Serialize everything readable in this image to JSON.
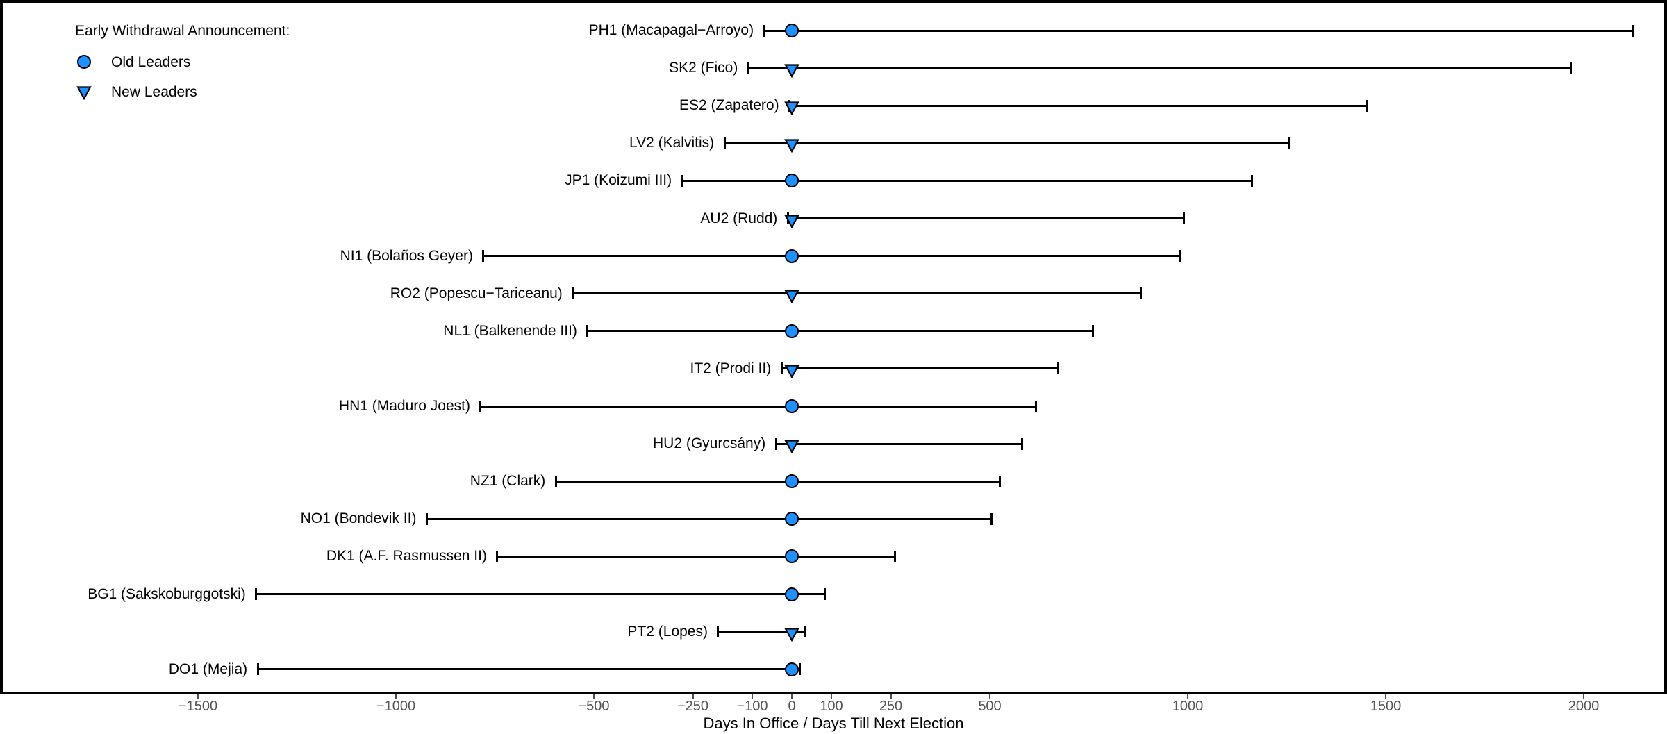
{
  "chart_data": {
    "type": "scatter",
    "subtype": "range-dot-plot",
    "title": "",
    "xlabel": "Days In Office / Days Till Next Election",
    "ylabel": "",
    "grid": false,
    "xlim": [
      -1990,
      2200
    ],
    "x_ticks": [
      {
        "value": -1500,
        "label": "−1500"
      },
      {
        "value": -1000,
        "label": "−1000"
      },
      {
        "value": -500,
        "label": "−500"
      },
      {
        "value": -250,
        "label": "−250"
      },
      {
        "value": -100,
        "label": "−100"
      },
      {
        "value": 0,
        "label": "0"
      },
      {
        "value": 100,
        "label": "100"
      },
      {
        "value": 250,
        "label": "250"
      },
      {
        "value": 500,
        "label": "500"
      },
      {
        "value": 1000,
        "label": "1000"
      },
      {
        "value": 1500,
        "label": "1500"
      },
      {
        "value": 2000,
        "label": "2000"
      }
    ],
    "legend": {
      "title": "Early Withdrawal Announcement:",
      "position": "top-left",
      "items": [
        {
          "label": "Old Leaders",
          "marker": "circle"
        },
        {
          "label": "New Leaders",
          "marker": "triangle-down"
        }
      ]
    },
    "marker_fill": "#1E90FF",
    "marker_stroke": "#000000",
    "line_color": "#000000",
    "rows": [
      {
        "label": "PH1 (Macapagal−Arroyo)",
        "group": "old",
        "marker": "circle",
        "days_in_office": -70,
        "announcement": 0,
        "days_till_next_election": 2123
      },
      {
        "label": "SK2 (Fico)",
        "group": "new",
        "marker": "triangle-down",
        "days_in_office": -110,
        "announcement": 0,
        "days_till_next_election": 1967
      },
      {
        "label": "ES2 (Zapatero)",
        "group": "new",
        "marker": "triangle-down",
        "days_in_office": -6,
        "announcement": 0,
        "days_till_next_election": 1451
      },
      {
        "label": "LV2 (Kalvitis)",
        "group": "new",
        "marker": "triangle-down",
        "days_in_office": -170,
        "announcement": 0,
        "days_till_next_election": 1256
      },
      {
        "label": "JP1 (Koizumi III)",
        "group": "old",
        "marker": "circle",
        "days_in_office": -277,
        "announcement": 0,
        "days_till_next_election": 1162
      },
      {
        "label": "AU2 (Rudd)",
        "group": "new",
        "marker": "triangle-down",
        "days_in_office": -10,
        "announcement": 0,
        "days_till_next_election": 991
      },
      {
        "label": "NI1 (Bolaños Geyer)",
        "group": "old",
        "marker": "circle",
        "days_in_office": -779,
        "announcement": 0,
        "days_till_next_election": 982
      },
      {
        "label": "RO2 (Popescu−Tariceanu)",
        "group": "new",
        "marker": "triangle-down",
        "days_in_office": -553,
        "announcement": 0,
        "days_till_next_election": 881
      },
      {
        "label": "NL1 (Balkenende III)",
        "group": "old",
        "marker": "circle",
        "days_in_office": -516,
        "announcement": 0,
        "days_till_next_election": 760
      },
      {
        "label": "IT2 (Prodi II)",
        "group": "new",
        "marker": "triangle-down",
        "days_in_office": -26,
        "announcement": 0,
        "days_till_next_election": 672
      },
      {
        "label": "HN1 (Maduro Joest)",
        "group": "old",
        "marker": "circle",
        "days_in_office": -786,
        "announcement": 0,
        "days_till_next_election": 616
      },
      {
        "label": "HU2 (Gyurcsány)",
        "group": "new",
        "marker": "triangle-down",
        "days_in_office": -40,
        "announcement": 0,
        "days_till_next_election": 581
      },
      {
        "label": "NZ1 (Clark)",
        "group": "old",
        "marker": "circle",
        "days_in_office": -596,
        "announcement": 0,
        "days_till_next_election": 526
      },
      {
        "label": "NO1 (Bondevik II)",
        "group": "old",
        "marker": "circle",
        "days_in_office": -922,
        "announcement": 0,
        "days_till_next_election": 505
      },
      {
        "label": "DK1 (A.F. Rasmussen II)",
        "group": "old",
        "marker": "circle",
        "days_in_office": -744,
        "announcement": 0,
        "days_till_next_election": 260
      },
      {
        "label": "BG1 (Sakskoburggotski)",
        "group": "old",
        "marker": "circle",
        "days_in_office": -1353,
        "announcement": 0,
        "days_till_next_election": 84
      },
      {
        "label": "PT2 (Lopes)",
        "group": "new",
        "marker": "triangle-down",
        "days_in_office": -186,
        "announcement": 0,
        "days_till_next_election": 32
      },
      {
        "label": "DO1 (Mejia)",
        "group": "old",
        "marker": "circle",
        "days_in_office": -1349,
        "announcement": 0,
        "days_till_next_election": 21
      }
    ]
  }
}
